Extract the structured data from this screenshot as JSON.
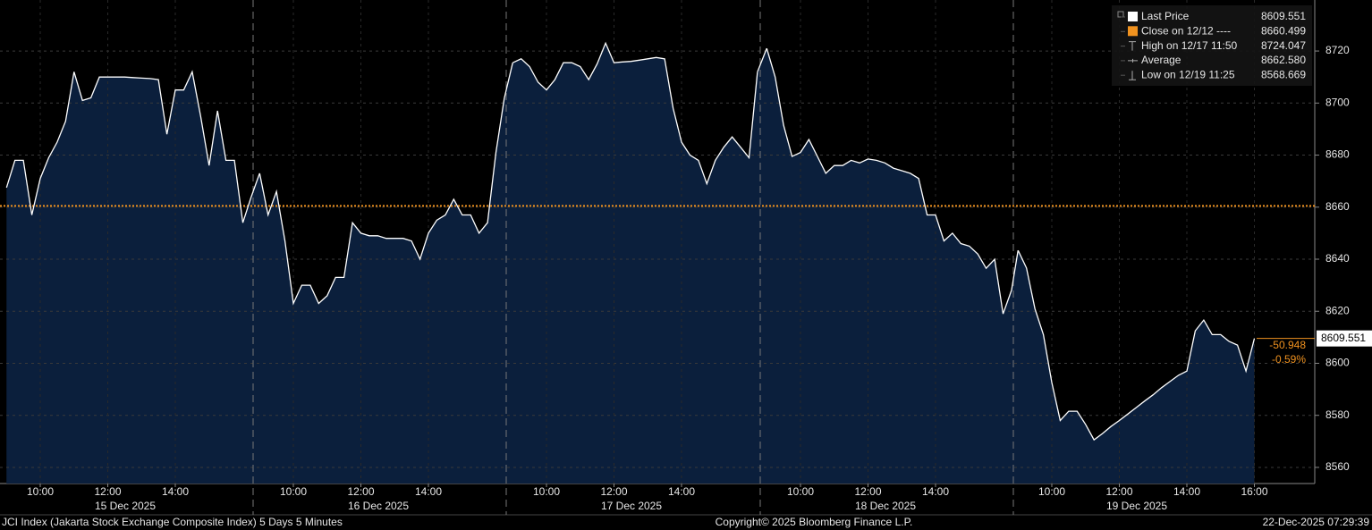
{
  "chart_data": {
    "type": "area",
    "line_color": "#ffffff",
    "fill_color": "#0b1f3c",
    "reference_color": "#f0921f",
    "ylim": [
      8553.8,
      8739.6
    ],
    "yticks": [
      8560,
      8580,
      8600,
      8620,
      8640,
      8660,
      8680,
      8700,
      8720
    ],
    "grid": true,
    "legend_position": "upper right",
    "legend": [
      {
        "name": "Last Price",
        "value": 8609.551
      },
      {
        "name": "Close on 12/12 ----",
        "value": 8660.499
      },
      {
        "name": "High on 12/17 11:50",
        "value": 8724.047
      },
      {
        "name": "Average",
        "value": {
          "value": 8662.58,
          "label": "8662.580"
        }
      },
      {
        "name": "Low on 12/19 11:25",
        "value": 8568.669
      }
    ],
    "change": -50.948,
    "change_pct": {
      "value": -0.59,
      "label": "-0.59%"
    },
    "sessions": [
      {
        "date": "15 Dec 2025",
        "xticks": [
          "10:00",
          "12:00",
          "14:00"
        ],
        "x": [
          "09:00",
          "09:15",
          "09:30",
          "09:45",
          "10:00",
          "10:15",
          "10:30",
          "10:45",
          "11:00",
          "11:15",
          "11:30",
          "11:45",
          "12:00",
          "12:15",
          "12:30",
          "12:45",
          "13:00",
          "13:15",
          "13:30",
          "13:45",
          "14:00",
          "14:15",
          "14:30",
          "14:45",
          "15:00",
          "15:15",
          "15:30",
          "15:45",
          "16:00",
          "16:15"
        ],
        "values": [
          8667.5,
          8678,
          8678,
          8657,
          8671,
          8679,
          8685,
          8693,
          8712,
          8701,
          8702,
          8710,
          8710,
          8710,
          8710,
          8709.8,
          8709.6,
          8709.4,
          8709,
          8688,
          8705,
          8705,
          8712,
          8695,
          8676,
          8697,
          8678,
          8678,
          8654,
          8664
        ]
      },
      {
        "date": "16 Dec 2025",
        "xticks": [
          "10:00",
          "12:00",
          "14:00"
        ],
        "x": [
          "09:00",
          "09:15",
          "09:30",
          "09:45",
          "10:00",
          "10:15",
          "10:30",
          "10:45",
          "11:00",
          "11:15",
          "11:30",
          "11:45",
          "12:00",
          "12:15",
          "12:30",
          "12:45",
          "13:00",
          "13:15",
          "13:30",
          "13:45",
          "14:00",
          "14:15",
          "14:30",
          "14:45",
          "15:00",
          "15:15",
          "15:30",
          "15:45",
          "16:00",
          "16:15"
        ],
        "values": [
          8673,
          8657,
          8666,
          8647,
          8623,
          8630,
          8630,
          8623,
          8626,
          8633,
          8633,
          8654,
          8650,
          8649,
          8649,
          8648,
          8648,
          8648,
          8647,
          8640,
          8650,
          8655,
          8657,
          8663,
          8657,
          8657,
          8650,
          8654,
          8681,
          8702
        ]
      },
      {
        "date": "17 Dec 2025",
        "xticks": [
          "10:00",
          "12:00",
          "14:00"
        ],
        "x": [
          "09:00",
          "09:15",
          "09:30",
          "09:45",
          "10:00",
          "10:15",
          "10:30",
          "10:45",
          "11:00",
          "11:15",
          "11:30",
          "11:45",
          "12:00",
          "12:15",
          "12:30",
          "12:45",
          "13:00",
          "13:15",
          "13:30",
          "13:45",
          "14:00",
          "14:15",
          "14:30",
          "14:45",
          "15:00",
          "15:15",
          "15:30",
          "15:45",
          "16:00",
          "16:15"
        ],
        "values": [
          8715.5,
          8717,
          8714,
          8708,
          8705,
          8709,
          8715.5,
          8715.5,
          8714,
          8709,
          8715,
          8723,
          8715.5,
          8715.8,
          8716,
          8716.5,
          8717,
          8717.5,
          8717,
          8698,
          8685,
          8680,
          8678,
          8669,
          8678,
          8683,
          8687,
          8683,
          8679,
          8712
        ]
      },
      {
        "date": "18 Dec 2025",
        "xticks": [
          "10:00",
          "12:00",
          "14:00"
        ],
        "x": [
          "09:00",
          "09:15",
          "09:30",
          "09:45",
          "10:00",
          "10:15",
          "10:30",
          "10:45",
          "11:00",
          "11:15",
          "11:30",
          "11:45",
          "12:00",
          "12:15",
          "12:30",
          "12:45",
          "13:00",
          "13:15",
          "13:30",
          "13:45",
          "14:00",
          "14:15",
          "14:30",
          "14:45",
          "15:00",
          "15:15",
          "15:30",
          "15:45",
          "16:00",
          "16:15"
        ],
        "values": [
          8721,
          8710,
          8691.5,
          8679.5,
          8681,
          8686,
          8679.5,
          8673,
          8676,
          8676,
          8678,
          8677,
          8678.5,
          8678,
          8677,
          8675,
          8674,
          8673,
          8671,
          8657,
          8657,
          8647,
          8650,
          8646,
          8645,
          8642,
          8636.5,
          8640,
          8619,
          8628
        ]
      },
      {
        "date": "19 Dec 2025",
        "xticks": [
          "10:00",
          "12:00",
          "14:00",
          "16:00"
        ],
        "x": [
          "09:00",
          "09:15",
          "09:30",
          "09:45",
          "10:00",
          "10:15",
          "10:30",
          "10:45",
          "11:00",
          "11:15",
          "11:30",
          "11:45",
          "12:00",
          "12:15",
          "12:30",
          "12:45",
          "13:00",
          "13:15",
          "13:30",
          "13:45",
          "14:00",
          "14:15",
          "14:30",
          "14:45",
          "15:00",
          "15:15",
          "15:30",
          "15:45",
          "16:00"
        ],
        "values": [
          8643.4,
          8636.6,
          8621,
          8611,
          8592.6,
          8578,
          8581.6,
          8581.6,
          8576.5,
          8570.6,
          8573,
          8575.7,
          8578,
          8580.5,
          8583,
          8585.5,
          8587.9,
          8590.6,
          8593,
          8595.4,
          8597,
          8612.5,
          8616.6,
          8611,
          8611,
          8608.4,
          8607,
          8597,
          8609.551
        ]
      }
    ],
    "footer_left": "JCI Index (Jakarta Stock Exchange Composite Index) 5 Days 5 Minutes",
    "copyright": "Copyright© 2025 Bloomberg Finance L.P.",
    "timestamp": "22-Dec-2025 07:29:39"
  }
}
